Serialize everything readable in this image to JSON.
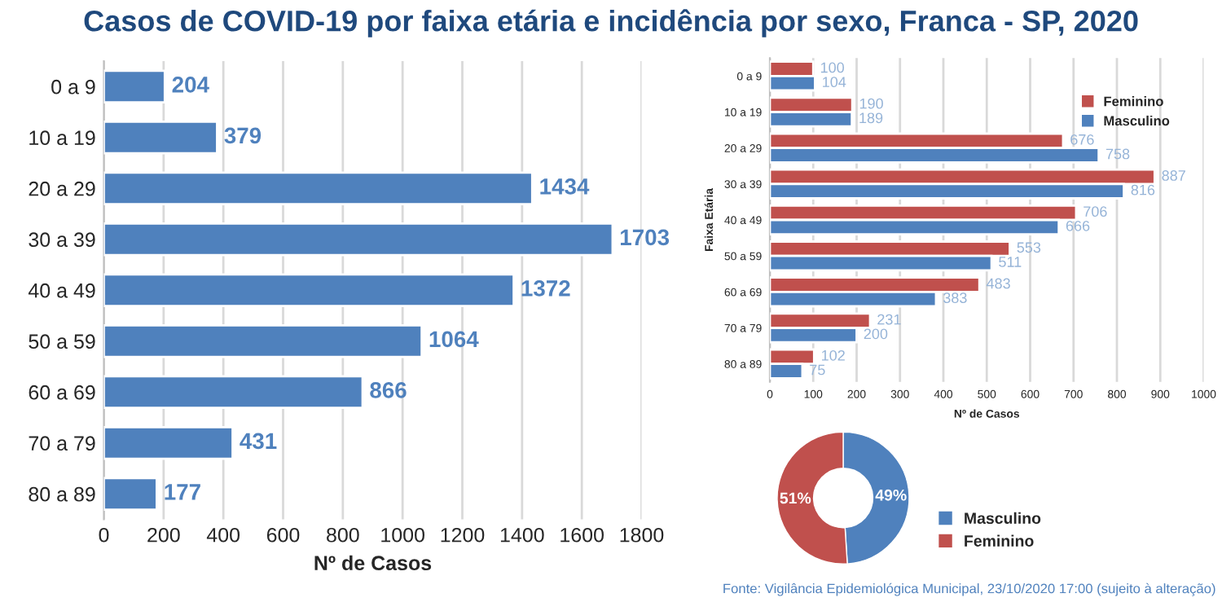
{
  "chart_data": [
    {
      "type": "bar",
      "orientation": "horizontal",
      "title": "Casos de COVID-19 por faixa etária e incidência por sexo, Franca - SP, 2020",
      "xlabel": "Nº de Casos",
      "categories": [
        "0 a 9",
        "10 a 19",
        "20 a 29",
        "30 a 39",
        "40 a 49",
        "50 a 59",
        "60 a 69",
        "70 a 79",
        "80 a 89"
      ],
      "series": [
        {
          "color": "#4f81bd",
          "values": [
            204,
            379,
            1434,
            1703,
            1372,
            1064,
            866,
            431,
            177
          ]
        }
      ],
      "xlim": [
        0,
        1800
      ],
      "xticks": [
        0,
        200,
        400,
        600,
        800,
        1000,
        1200,
        1400,
        1600,
        1800
      ],
      "grid": "x",
      "data_labels": true
    },
    {
      "type": "bar",
      "orientation": "horizontal",
      "xlabel": "Nº de Casos",
      "ylabel": "Faixa Etária",
      "categories": [
        "0 a 9",
        "10 a 19",
        "20 a 29",
        "30 a 39",
        "40 a 49",
        "50 a 59",
        "60 a 69",
        "70 a 79",
        "80 a 89"
      ],
      "series": [
        {
          "name": "Feminino",
          "color": "#c0504d",
          "values": [
            100,
            190,
            676,
            887,
            706,
            553,
            483,
            231,
            102
          ]
        },
        {
          "name": "Masculino",
          "color": "#4f81bd",
          "values": [
            104,
            189,
            758,
            816,
            666,
            511,
            383,
            200,
            75
          ]
        }
      ],
      "xlim": [
        0,
        1000
      ],
      "xticks": [
        0,
        100,
        200,
        300,
        400,
        500,
        600,
        700,
        800,
        900,
        1000
      ],
      "grid": "x",
      "legend": "top right",
      "data_labels": true
    },
    {
      "type": "donut",
      "categories": [
        "Masculino",
        "Feminino"
      ],
      "values": [
        49,
        51
      ],
      "colors": [
        "#4f81bd",
        "#c0504d"
      ],
      "value_labels": [
        "49%",
        "51%"
      ],
      "legend": "right",
      "annotations": [
        "Fonte: Vigilância Epidemiológica Municipal, 23/10/2020 17:00 (sujeito à alteração)"
      ]
    }
  ]
}
